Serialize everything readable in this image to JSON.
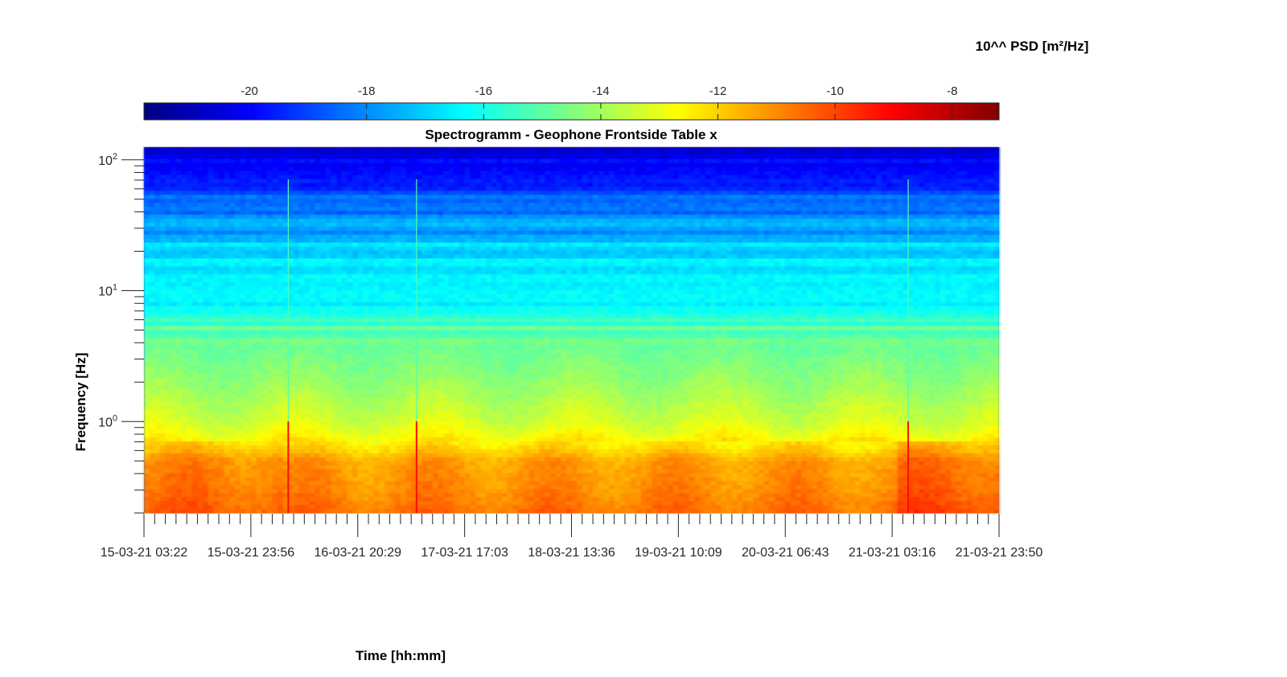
{
  "chart_data": {
    "type": "heatmap",
    "title": "Spectrogramm - Geophone Frontside Table x",
    "xlabel": "Time [hh:mm]",
    "ylabel": "Frequency [Hz]",
    "y_scale": "log",
    "ylim": [
      0.2,
      125
    ],
    "x_tick_labels": [
      "15-03-21 03:22",
      "15-03-21 23:56",
      "16-03-21 20:29",
      "17-03-21 17:03",
      "18-03-21 13:36",
      "19-03-21 10:09",
      "20-03-21 06:43",
      "21-03-21 03:16",
      "21-03-21 23:50"
    ],
    "y_ticks": [
      {
        "base": "10",
        "exp": "0",
        "value": 1
      },
      {
        "base": "10",
        "exp": "1",
        "value": 10
      },
      {
        "base": "10",
        "exp": "2",
        "value": 100
      }
    ],
    "colorbar": {
      "label": "10^^ PSD [m²/Hz]",
      "colormap": "jet",
      "range": [
        -21.8,
        -7.2
      ],
      "ticks": [
        -20,
        -18,
        -16,
        -14,
        -12,
        -10,
        -8
      ],
      "tick_labels": [
        "-20",
        "-18",
        "-16",
        "-14",
        "-12",
        "-10",
        "-8"
      ]
    },
    "frequency_profile_log10psd": [
      {
        "f": 0.2,
        "v": -10.6
      },
      {
        "f": 0.3,
        "v": -11.0
      },
      {
        "f": 0.5,
        "v": -11.3
      },
      {
        "f": 0.6,
        "v": -12.0
      },
      {
        "f": 0.8,
        "v": -12.8
      },
      {
        "f": 1,
        "v": -13.3
      },
      {
        "f": 2,
        "v": -14.2
      },
      {
        "f": 4,
        "v": -14.9
      },
      {
        "f": 6,
        "v": -16.0
      },
      {
        "f": 10,
        "v": -16.4
      },
      {
        "f": 20,
        "v": -17.2
      },
      {
        "f": 40,
        "v": -18.0
      },
      {
        "f": 70,
        "v": -19.6
      },
      {
        "f": 125,
        "v": -20.8
      }
    ],
    "transient_events": [
      "15-03-21 23:56",
      "16-03-21 20:29",
      "21-03-21 03:16"
    ]
  }
}
